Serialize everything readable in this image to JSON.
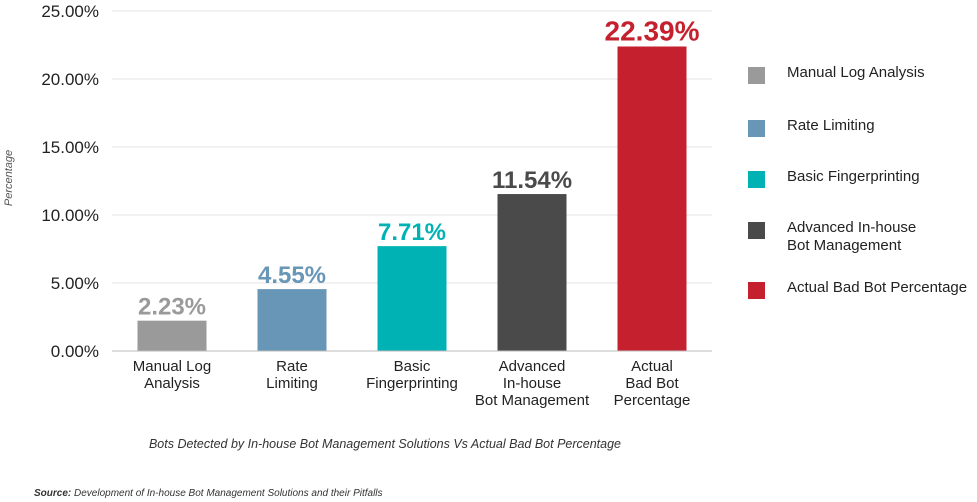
{
  "chart_data": {
    "type": "bar",
    "categories": [
      "Manual Log\nAnalysis",
      "Rate\nLimiting",
      "Basic\nFingerprinting",
      "Advanced\nIn-house\nBot Management",
      "Actual\nBad Bot\nPercentage"
    ],
    "values": [
      2.23,
      4.55,
      7.71,
      11.54,
      22.39
    ],
    "value_labels": [
      "2.23%",
      "4.55%",
      "7.71%",
      "11.54%",
      "22.39%"
    ],
    "colors": [
      "#9a9a9a",
      "#6796b7",
      "#00b2b4",
      "#4a4a4a",
      "#c4202e"
    ],
    "ylabel": "Percentage",
    "ylim": [
      0,
      25
    ],
    "yticks": [
      0,
      5,
      10,
      15,
      20,
      25
    ],
    "ytick_labels": [
      "0.00%",
      "5.00%",
      "10.00%",
      "15.00%",
      "20.00%",
      "25.00%"
    ],
    "grid": true,
    "legend": [
      "Manual Log Analysis",
      "Rate Limiting",
      "Basic Fingerprinting",
      "Advanced In-house\nBot Management",
      "Actual Bad Bot Percentage"
    ],
    "legend_position": "right",
    "caption": "Bots Detected by In-house Bot Management Solutions Vs Actual Bad Bot Percentage"
  },
  "source": {
    "label": "Source:",
    "text": "Development of In-house Bot Management Solutions and their Pitfalls"
  }
}
